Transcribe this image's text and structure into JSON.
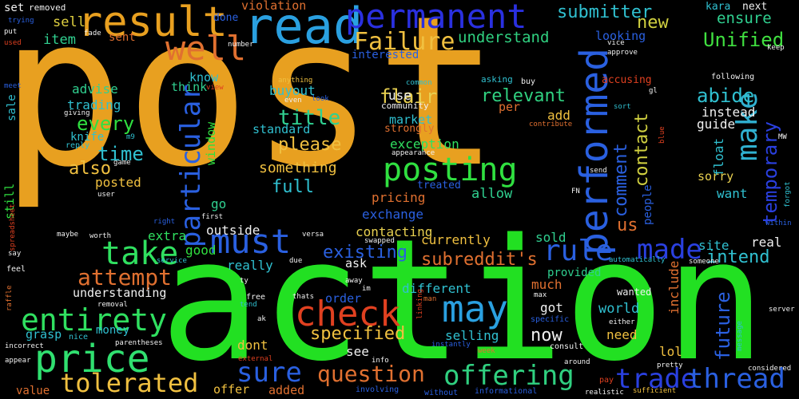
{
  "words": [
    {
      "text": "post",
      "color": "#e8a020",
      "vertical": false
    },
    {
      "text": "action",
      "color": "#22e022",
      "vertical": false
    },
    {
      "text": "result",
      "color": "#e8a020",
      "vertical": false
    },
    {
      "text": "read",
      "color": "#2aa0e0",
      "vertical": false
    },
    {
      "text": "permanent",
      "color": "#2a30e0",
      "vertical": false
    },
    {
      "text": "well",
      "color": "#e07030",
      "vertical": false
    },
    {
      "text": "Failure",
      "color": "#f0c040",
      "vertical": false
    },
    {
      "text": "understand",
      "color": "#30d080",
      "vertical": false
    },
    {
      "text": "submitter",
      "color": "#30c0d0",
      "vertical": false
    },
    {
      "text": "new",
      "color": "#d0d040",
      "vertical": false
    },
    {
      "text": "Unified",
      "color": "#40e040",
      "vertical": false
    },
    {
      "text": "ensure",
      "color": "#30d090",
      "vertical": false
    },
    {
      "text": "performed",
      "color": "#2a60e0",
      "vertical": true
    },
    {
      "text": "particular",
      "color": "#2a60e0",
      "vertical": true
    },
    {
      "text": "make",
      "color": "#30b0d0",
      "vertical": true
    },
    {
      "text": "temporary",
      "color": "#2a40e0",
      "vertical": true
    },
    {
      "text": "posting",
      "color": "#30e040",
      "vertical": false
    },
    {
      "text": "must",
      "color": "#2a60e0",
      "vertical": false
    },
    {
      "text": "take",
      "color": "#30e060",
      "vertical": false
    },
    {
      "text": "made",
      "color": "#2a40e0",
      "vertical": false
    },
    {
      "text": "rule",
      "color": "#2a60e0",
      "vertical": false
    },
    {
      "text": "may",
      "color": "#2aa0e0",
      "vertical": false
    },
    {
      "text": "check",
      "color": "#e04020",
      "vertical": false
    },
    {
      "text": "price",
      "color": "#30e070",
      "vertical": false
    },
    {
      "text": "entirety",
      "color": "#30e060",
      "vertical": false
    },
    {
      "text": "tolerated",
      "color": "#f0c040",
      "vertical": false
    },
    {
      "text": "sure",
      "color": "#2a60e0",
      "vertical": false
    },
    {
      "text": "offering",
      "color": "#30d080",
      "vertical": false
    },
    {
      "text": "trade",
      "color": "#2a40e0",
      "vertical": false
    },
    {
      "text": "thread",
      "color": "#2a60e0",
      "vertical": false
    },
    {
      "text": "question",
      "color": "#e07030",
      "vertical": false
    },
    {
      "text": "attempt",
      "color": "#e07030",
      "vertical": false
    },
    {
      "text": "title",
      "color": "#30d090",
      "vertical": false
    },
    {
      "text": "please",
      "color": "#f0c040",
      "vertical": false
    },
    {
      "text": "every",
      "color": "#30e040",
      "vertical": false
    },
    {
      "text": "time",
      "color": "#30c0d0",
      "vertical": false
    },
    {
      "text": "also",
      "color": "#f0c040",
      "vertical": false
    },
    {
      "text": "full",
      "color": "#30c0d0",
      "vertical": false
    },
    {
      "text": "something",
      "color": "#f0c040",
      "vertical": false
    },
    {
      "text": "relevant",
      "color": "#30d080",
      "vertical": false
    },
    {
      "text": "abide",
      "color": "#30c0d0",
      "vertical": false
    },
    {
      "text": "existing",
      "color": "#2a60e0",
      "vertical": false
    },
    {
      "text": "subreddit's",
      "color": "#e07030",
      "vertical": false
    },
    {
      "text": "specified",
      "color": "#f0c040",
      "vertical": false
    },
    {
      "text": "intend",
      "color": "#30c0d0",
      "vertical": false
    },
    {
      "text": "future",
      "color": "#2a60e0",
      "vertical": true
    },
    {
      "text": "now",
      "color": "#f0f0f0",
      "vertical": false
    },
    {
      "text": "flair",
      "color": "#e8d050",
      "vertical": false
    },
    {
      "text": "contact",
      "color": "#d0d040",
      "vertical": true
    },
    {
      "text": "comment",
      "color": "#2a60e0",
      "vertical": true
    },
    {
      "text": "us",
      "color": "#e07030",
      "vertical": false
    },
    {
      "text": "buyout",
      "color": "#30c0d0",
      "vertical": false
    },
    {
      "text": "standard",
      "color": "#30c0d0",
      "vertical": false
    },
    {
      "text": "trading",
      "color": "#30c0d0",
      "vertical": false
    },
    {
      "text": "advise",
      "color": "#30d090",
      "vertical": false
    },
    {
      "text": "item",
      "color": "#30d090",
      "vertical": false
    },
    {
      "text": "sell",
      "color": "#e0d040",
      "vertical": false
    },
    {
      "text": "set",
      "color": "#f0f0f0",
      "vertical": false
    },
    {
      "text": "sent",
      "color": "#e07030",
      "vertical": false
    },
    {
      "text": "think",
      "color": "#30d090",
      "vertical": false
    },
    {
      "text": "know",
      "color": "#30c0d0",
      "vertical": false
    },
    {
      "text": "window",
      "color": "#30e040",
      "vertical": true
    },
    {
      "text": "knife",
      "color": "#30c0d0",
      "vertical": false
    },
    {
      "text": "posted",
      "color": "#f0c040",
      "vertical": false
    },
    {
      "text": "go",
      "color": "#30d090",
      "vertical": false
    },
    {
      "text": "extra",
      "color": "#30e060",
      "vertical": false
    },
    {
      "text": "good",
      "color": "#30e040",
      "vertical": false
    },
    {
      "text": "outside",
      "color": "#f0f0f0",
      "vertical": false
    },
    {
      "text": "really",
      "color": "#30c0d0",
      "vertical": false
    },
    {
      "text": "pricing",
      "color": "#e07030",
      "vertical": false
    },
    {
      "text": "exchange",
      "color": "#2a60e0",
      "vertical": false
    },
    {
      "text": "contacting",
      "color": "#e8d050",
      "vertical": false
    },
    {
      "text": "currently",
      "color": "#f0c040",
      "vertical": false
    },
    {
      "text": "allow",
      "color": "#30d090",
      "vertical": false
    },
    {
      "text": "sold",
      "color": "#30d090",
      "vertical": false
    },
    {
      "text": "site",
      "color": "#30c0d0",
      "vertical": false
    },
    {
      "text": "real",
      "color": "#f0f0f0",
      "vertical": false
    },
    {
      "text": "want",
      "color": "#30c0d0",
      "vertical": false
    },
    {
      "text": "sorry",
      "color": "#e8d050",
      "vertical": false
    },
    {
      "text": "instead",
      "color": "#f0f0f0",
      "vertical": false
    },
    {
      "text": "guide",
      "color": "#f0f0f0",
      "vertical": false
    },
    {
      "text": "float",
      "color": "#30c0d0",
      "vertical": true
    },
    {
      "text": "market",
      "color": "#30c0d0",
      "vertical": false
    },
    {
      "text": "exception",
      "color": "#30e060",
      "vertical": false
    },
    {
      "text": "use",
      "color": "#f0f0f0",
      "vertical": false
    },
    {
      "text": "add",
      "color": "#f0c040",
      "vertical": false
    },
    {
      "text": "per",
      "color": "#e07030",
      "vertical": false
    },
    {
      "text": "looking",
      "color": "#2a60e0",
      "vertical": false
    },
    {
      "text": "interested",
      "color": "#2a60e0",
      "vertical": false
    },
    {
      "text": "violation",
      "color": "#e07030",
      "vertical": false
    },
    {
      "text": "done",
      "color": "#2a60e0",
      "vertical": false
    },
    {
      "text": "next",
      "color": "#f0f0f0",
      "vertical": false
    },
    {
      "text": "kara",
      "color": "#30c0d0",
      "vertical": false
    },
    {
      "text": "accusing",
      "color": "#e04020",
      "vertical": false
    },
    {
      "text": "strongly",
      "color": "#e07030",
      "vertical": false
    },
    {
      "text": "treated",
      "color": "#2a60e0",
      "vertical": false
    },
    {
      "text": "ask",
      "color": "#f0f0f0",
      "vertical": false
    },
    {
      "text": "order",
      "color": "#2a60e0",
      "vertical": false
    },
    {
      "text": "different",
      "color": "#30c0d0",
      "vertical": false
    },
    {
      "text": "much",
      "color": "#e07030",
      "vertical": false
    },
    {
      "text": "provided",
      "color": "#30d090",
      "vertical": false
    },
    {
      "text": "include",
      "color": "#e07030",
      "vertical": true
    },
    {
      "text": "got",
      "color": "#f0f0f0",
      "vertical": false
    },
    {
      "text": "world",
      "color": "#30c0d0",
      "vertical": false
    },
    {
      "text": "need",
      "color": "#f0c040",
      "vertical": false
    },
    {
      "text": "lol",
      "color": "#f0c040",
      "vertical": false
    },
    {
      "text": "selling",
      "color": "#30c0d0",
      "vertical": false
    },
    {
      "text": "see",
      "color": "#f0f0f0",
      "vertical": false
    },
    {
      "text": "dont",
      "color": "#f0c040",
      "vertical": false
    },
    {
      "text": "offer",
      "color": "#f0c040",
      "vertical": false
    },
    {
      "text": "added",
      "color": "#e07030",
      "vertical": false
    },
    {
      "text": "value",
      "color": "#e07030",
      "vertical": false
    },
    {
      "text": "understanding",
      "color": "#f0f0f0",
      "vertical": false
    },
    {
      "text": "money",
      "color": "#30c0d0",
      "vertical": false
    },
    {
      "text": "grasp",
      "color": "#30c0d0",
      "vertical": false
    },
    {
      "text": "still",
      "color": "#30e040",
      "vertical": true
    },
    {
      "text": "sale",
      "color": "#30c0d0",
      "vertical": true
    },
    {
      "text": "people",
      "color": "#2a60e0",
      "vertical": true
    },
    {
      "text": "wanted",
      "color": "#f0f0f0",
      "vertical": false
    },
    {
      "text": "removed",
      "color": "#f0f0f0",
      "vertical": false
    },
    {
      "text": "trying",
      "color": "#2a60e0",
      "vertical": false
    },
    {
      "text": "fade",
      "color": "#f0f0f0",
      "vertical": false
    },
    {
      "text": "number",
      "color": "#f0f0f0",
      "vertical": false
    },
    {
      "text": "vice",
      "color": "#f0f0f0",
      "vertical": false
    },
    {
      "text": "approve",
      "color": "#f0f0f0",
      "vertical": false
    },
    {
      "text": "keep",
      "color": "#f0f0f0",
      "vertical": false
    },
    {
      "text": "following",
      "color": "#f0f0f0",
      "vertical": false
    },
    {
      "text": "anything",
      "color": "#f0c040",
      "vertical": false
    },
    {
      "text": "common",
      "color": "#30c0d0",
      "vertical": false
    },
    {
      "text": "asking",
      "color": "#30c0d0",
      "vertical": false
    },
    {
      "text": "buy",
      "color": "#f0f0f0",
      "vertical": false
    },
    {
      "text": "even",
      "color": "#f0f0f0",
      "vertical": false
    },
    {
      "text": "look",
      "color": "#2a60e0",
      "vertical": false
    },
    {
      "text": "community",
      "color": "#f0f0f0",
      "vertical": false
    },
    {
      "text": "sort",
      "color": "#30c0d0",
      "vertical": false
    },
    {
      "text": "gl",
      "color": "#f0f0f0",
      "vertical": false
    },
    {
      "text": "contribute",
      "color": "#e07030",
      "vertical": false
    },
    {
      "text": "blue",
      "color": "#e04020",
      "vertical": true
    },
    {
      "text": "appearance",
      "color": "#f0f0f0",
      "vertical": false
    },
    {
      "text": "giving",
      "color": "#f0f0f0",
      "vertical": false
    },
    {
      "text": "reply",
      "color": "#30c0d0",
      "vertical": false
    },
    {
      "text": "m9",
      "color": "#30c0d0",
      "vertical": false
    },
    {
      "text": "game",
      "color": "#f0f0f0",
      "vertical": false
    },
    {
      "text": "user",
      "color": "#f0f0f0",
      "vertical": false
    },
    {
      "text": "send",
      "color": "#f0f0f0",
      "vertical": false
    },
    {
      "text": "MW",
      "color": "#f0f0f0",
      "vertical": false
    },
    {
      "text": "forgot",
      "color": "#30c0d0",
      "vertical": true
    },
    {
      "text": "FN",
      "color": "#f0f0f0",
      "vertical": false
    },
    {
      "text": "within",
      "color": "#2a60e0",
      "vertical": false
    },
    {
      "text": "spreadsheet",
      "color": "#e04020",
      "vertical": true
    },
    {
      "text": "maybe",
      "color": "#f0f0f0",
      "vertical": false
    },
    {
      "text": "right",
      "color": "#2a60e0",
      "vertical": false
    },
    {
      "text": "first",
      "color": "#f0f0f0",
      "vertical": false
    },
    {
      "text": "worth",
      "color": "#f0f0f0",
      "vertical": false
    },
    {
      "text": "versa",
      "color": "#f0f0f0",
      "vertical": false
    },
    {
      "text": "swapped",
      "color": "#f0f0f0",
      "vertical": false
    },
    {
      "text": "say",
      "color": "#f0f0f0",
      "vertical": false
    },
    {
      "text": "feel",
      "color": "#f0f0f0",
      "vertical": false
    },
    {
      "text": "service",
      "color": "#30c0d0",
      "vertical": false
    },
    {
      "text": "due",
      "color": "#f0f0f0",
      "vertical": false
    },
    {
      "text": "automatically",
      "color": "#30c0d0",
      "vertical": false
    },
    {
      "text": "someone",
      "color": "#f0f0f0",
      "vertical": false
    },
    {
      "text": "raffle",
      "color": "#e07030",
      "vertical": true
    },
    {
      "text": "ty",
      "color": "#f0f0f0",
      "vertical": false
    },
    {
      "text": "away",
      "color": "#f0f0f0",
      "vertical": false
    },
    {
      "text": "im",
      "color": "#f0f0f0",
      "vertical": false
    },
    {
      "text": "thats",
      "color": "#f0f0f0",
      "vertical": false
    },
    {
      "text": "man",
      "color": "#e07030",
      "vertical": false
    },
    {
      "text": "max",
      "color": "#f0f0f0",
      "vertical": false
    },
    {
      "text": "server",
      "color": "#f0f0f0",
      "vertical": false
    },
    {
      "text": "free",
      "color": "#f0f0f0",
      "vertical": false
    },
    {
      "text": "tend",
      "color": "#30c0d0",
      "vertical": false
    },
    {
      "text": "removal",
      "color": "#f0f0f0",
      "vertical": false
    },
    {
      "text": "linking",
      "color": "#e04020",
      "vertical": true
    },
    {
      "text": "specific",
      "color": "#2a60e0",
      "vertical": false
    },
    {
      "text": "either",
      "color": "#f0f0f0",
      "vertical": false
    },
    {
      "text": "message",
      "color": "#30c0d0",
      "vertical": true
    },
    {
      "text": "nice",
      "color": "#30c0d0",
      "vertical": false
    },
    {
      "text": "parentheses",
      "color": "#f0f0f0",
      "vertical": false
    },
    {
      "text": "incorrect",
      "color": "#f0f0f0",
      "vertical": false
    },
    {
      "text": "appear",
      "color": "#f0f0f0",
      "vertical": false
    },
    {
      "text": "external",
      "color": "#e04020",
      "vertical": false
    },
    {
      "text": "info",
      "color": "#f0f0f0",
      "vertical": false
    },
    {
      "text": "instantly",
      "color": "#2a60e0",
      "vertical": false
    },
    {
      "text": "week",
      "color": "#e07030",
      "vertical": false
    },
    {
      "text": "consult",
      "color": "#f0f0f0",
      "vertical": false
    },
    {
      "text": "around",
      "color": "#f0f0f0",
      "vertical": false
    },
    {
      "text": "pretty",
      "color": "#f0f0f0",
      "vertical": false
    },
    {
      "text": "considered",
      "color": "#f0f0f0",
      "vertical": false
    },
    {
      "text": "pay",
      "color": "#e04020",
      "vertical": false
    },
    {
      "text": "sufficient",
      "color": "#f0c040",
      "vertical": false
    },
    {
      "text": "realistic",
      "color": "#f0f0f0",
      "vertical": false
    },
    {
      "text": "informational",
      "color": "#2a60e0",
      "vertical": false
    },
    {
      "text": "involving",
      "color": "#2a60e0",
      "vertical": false
    },
    {
      "text": "without",
      "color": "#2a60e0",
      "vertical": false
    },
    {
      "text": "put",
      "color": "#f0f0f0",
      "vertical": false
    },
    {
      "text": "used",
      "color": "#e04020",
      "vertical": false
    },
    {
      "text": "meet",
      "color": "#2a60e0",
      "vertical": false
    },
    {
      "text": "ak",
      "color": "#f0f0f0",
      "vertical": false
    },
    {
      "text": "view",
      "color": "#e04020",
      "vertical": false
    }
  ]
}
